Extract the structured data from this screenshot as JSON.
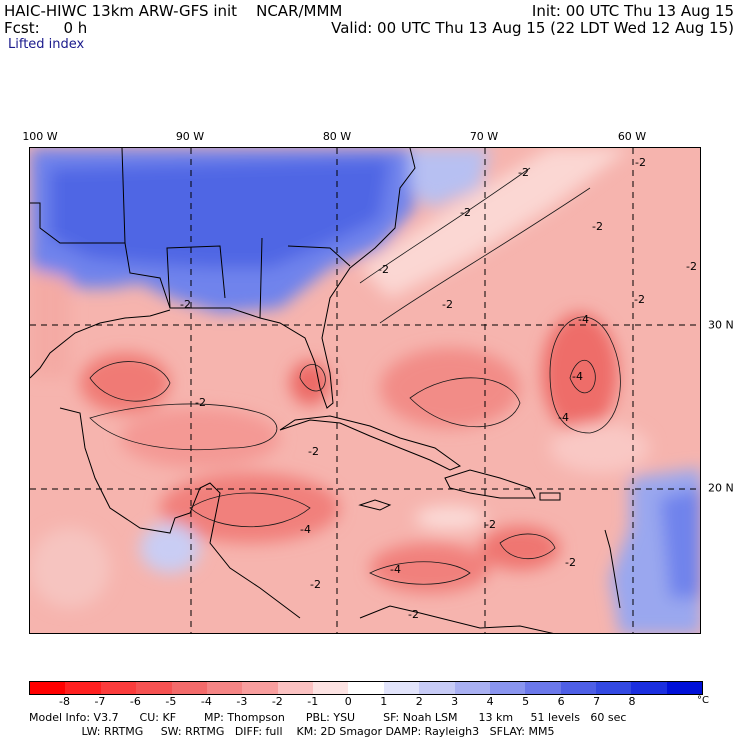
{
  "header": {
    "title": "HAIC-HIWC 13km ARW-GFS init    NCAR/MMM",
    "fcst": "Fcst:     0 h",
    "init": "Init: 00 UTC Thu 13 Aug 15",
    "valid": "Valid: 00 UTC Thu 13 Aug 15 (22 LDT Wed 12 Aug 15)",
    "field": "Lifted index"
  },
  "map": {
    "lon_labels": [
      "100 W",
      "90 W",
      "80 W",
      "70 W",
      "60 W"
    ],
    "lat_labels": [
      "30 N",
      "20 N"
    ],
    "contour_labels": [
      "-2",
      "-2",
      "-2",
      "-2",
      "-2",
      "-2",
      "-2",
      "-2",
      "-2",
      "-4",
      "-4",
      "-4",
      "-2",
      "-2",
      "-2",
      "-2",
      "-4",
      "-2",
      "-4",
      "-2"
    ],
    "colors": {
      "land_cold": "#5f7ff0",
      "warm_1": "#f7c9c4",
      "warm_2": "#f39a95",
      "warm_3": "#ef6f6c"
    }
  },
  "colorbar": {
    "labels": [
      "-8",
      "-7",
      "-6",
      "-5",
      "-4",
      "-3",
      "-2",
      "-1",
      "0",
      "1",
      "2",
      "3",
      "4",
      "5",
      "6",
      "7",
      "8"
    ],
    "unit": "°C",
    "colors": [
      "#ff0000",
      "#ff2020",
      "#fb3c3c",
      "#f65252",
      "#f36b6b",
      "#f58585",
      "#f89e9e",
      "#fbc2c2",
      "#fde3e3",
      "#ffffff",
      "#e2e4fb",
      "#c7cbf6",
      "#a9b0f2",
      "#8a95ef",
      "#6b78ea",
      "#4e5fe6",
      "#3349e2",
      "#1b2fdf",
      "#0010d8"
    ]
  },
  "model_info": {
    "line1": "Model Info: V3.7      CU: KF        MP: Thompson      PBL: YSU        SF: Noah LSM      13 km     51 levels   60 sec",
    "line2": "               LW: RRTMG     SW: RRTMG   DIFF: full    KM: 2D Smagor DAMP: Rayleigh3   SFLAY: MM5"
  }
}
